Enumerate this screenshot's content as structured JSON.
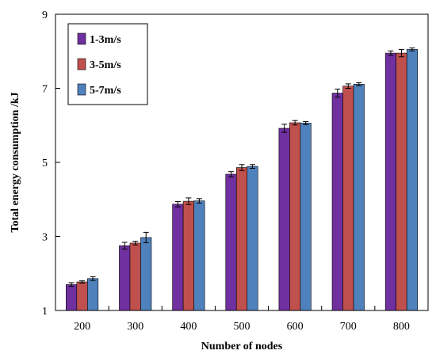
{
  "chart_data": {
    "type": "bar",
    "title": "",
    "xlabel": "Number of nodes",
    "ylabel": "Total energy consumption /kJ",
    "categories": [
      "200",
      "300",
      "400",
      "500",
      "600",
      "700",
      "800"
    ],
    "ylim": [
      1,
      9
    ],
    "yticks": [
      1,
      3,
      5,
      7,
      9
    ],
    "grid": false,
    "legend_position": "top-left",
    "series": [
      {
        "name": "1-3m/s",
        "color": "#7030a0",
        "values": [
          1.7,
          2.75,
          3.87,
          4.68,
          5.92,
          6.87,
          7.95
        ],
        "errors": [
          0.05,
          0.09,
          0.07,
          0.07,
          0.11,
          0.11,
          0.06
        ]
      },
      {
        "name": "3-5m/s",
        "color": "#c0504d",
        "values": [
          1.77,
          2.82,
          3.95,
          4.86,
          6.07,
          7.06,
          7.95
        ],
        "errors": [
          0.03,
          0.05,
          0.09,
          0.08,
          0.06,
          0.06,
          0.1
        ]
      },
      {
        "name": "5-7m/s",
        "color": "#4f81bd",
        "values": [
          1.86,
          2.97,
          3.96,
          4.89,
          6.06,
          7.11,
          8.05
        ],
        "errors": [
          0.05,
          0.14,
          0.06,
          0.05,
          0.04,
          0.04,
          0.04
        ]
      }
    ]
  }
}
